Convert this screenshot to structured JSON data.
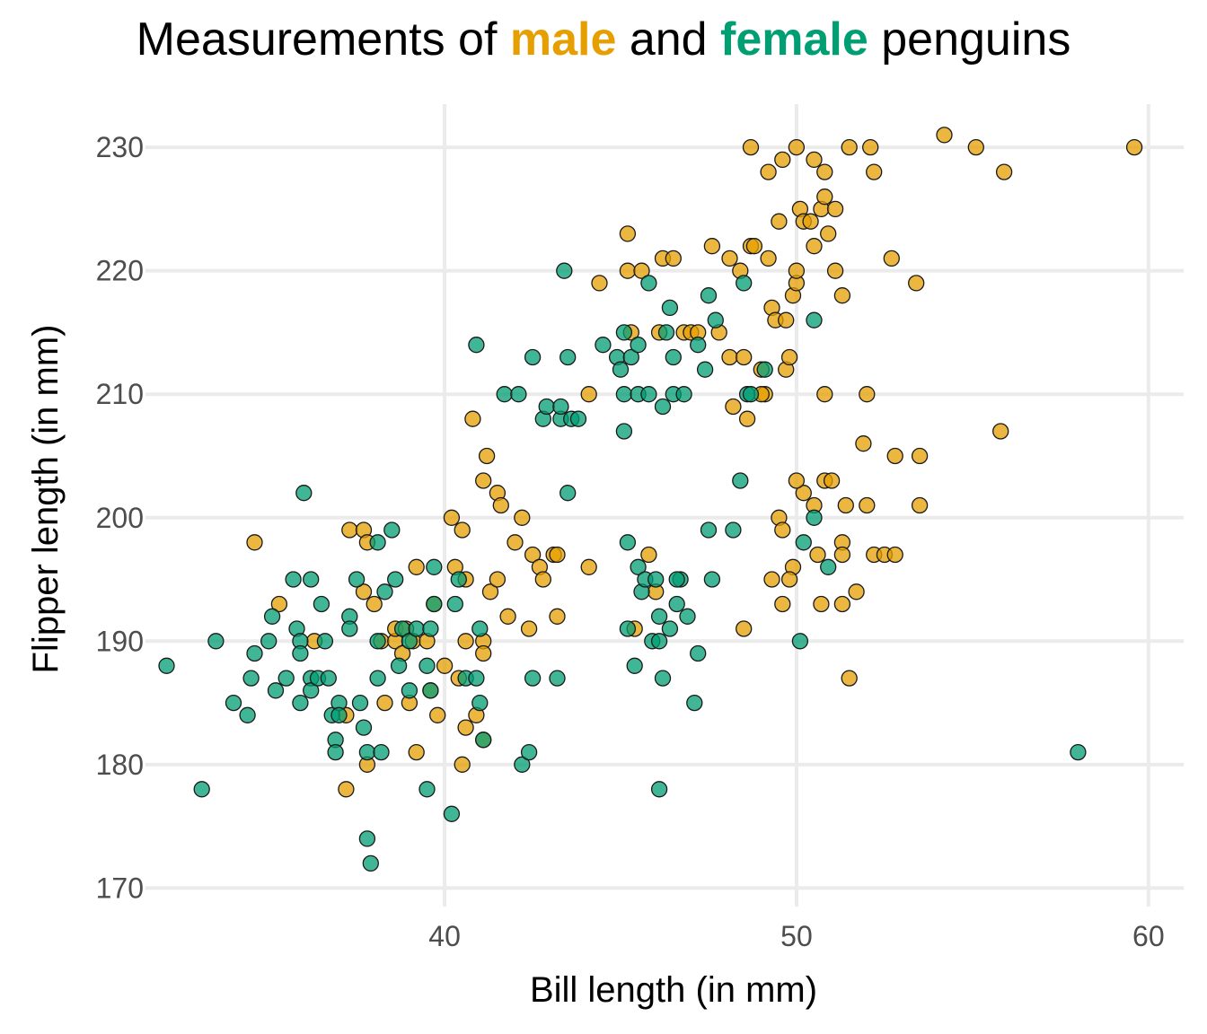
{
  "title": {
    "prefix": "Measurements of ",
    "male_word": "male",
    "middle": " and ",
    "female_word": "female",
    "suffix": " penguins"
  },
  "colors": {
    "male": "#E69F00",
    "female": "#009E73",
    "grid": "#ebebeb",
    "stroke": "#1a1a1a"
  },
  "chart_data": {
    "type": "scatter",
    "xlabel": "Bill length (in mm)",
    "ylabel": "Flipper length (in mm)",
    "xlim": [
      31.5,
      61
    ],
    "ylim": [
      168.5,
      233.5
    ],
    "xticks": [
      40,
      50,
      60
    ],
    "yticks": [
      170,
      180,
      190,
      200,
      210,
      220,
      230
    ],
    "grid": true,
    "legend": "none",
    "series": [
      {
        "name": "male",
        "points": [
          [
            34.6,
            198
          ],
          [
            35.3,
            193
          ],
          [
            37.3,
            199
          ],
          [
            37.7,
            199
          ],
          [
            37.8,
            198
          ],
          [
            37.2,
            184
          ],
          [
            37.2,
            178
          ],
          [
            37.7,
            194
          ],
          [
            37.8,
            180
          ],
          [
            38.0,
            193
          ],
          [
            38.2,
            190
          ],
          [
            38.3,
            185
          ],
          [
            38.6,
            190
          ],
          [
            38.6,
            191
          ],
          [
            38.8,
            189
          ],
          [
            38.9,
            191
          ],
          [
            39.1,
            190
          ],
          [
            39.2,
            196
          ],
          [
            39.2,
            181
          ],
          [
            39.0,
            185
          ],
          [
            39.5,
            190
          ],
          [
            39.6,
            186
          ],
          [
            39.7,
            193
          ],
          [
            39.8,
            184
          ],
          [
            40.2,
            200
          ],
          [
            40.3,
            196
          ],
          [
            40.5,
            199
          ],
          [
            40.6,
            195
          ],
          [
            40.6,
            183
          ],
          [
            40.8,
            208
          ],
          [
            40.9,
            184
          ],
          [
            41.1,
            203
          ],
          [
            41.1,
            182
          ],
          [
            41.1,
            190
          ],
          [
            41.2,
            205
          ],
          [
            41.3,
            194
          ],
          [
            41.5,
            202
          ],
          [
            41.5,
            195
          ],
          [
            41.6,
            201
          ],
          [
            41.8,
            192
          ],
          [
            41.1,
            189
          ],
          [
            40.4,
            187
          ],
          [
            40.6,
            190
          ],
          [
            36.3,
            190
          ],
          [
            40.0,
            188
          ],
          [
            40.5,
            180
          ],
          [
            42.0,
            198
          ],
          [
            42.2,
            200
          ],
          [
            42.5,
            197
          ],
          [
            42.4,
            191
          ],
          [
            42.7,
            196
          ],
          [
            42.8,
            195
          ],
          [
            43.1,
            197
          ],
          [
            43.2,
            197
          ],
          [
            43.2,
            192
          ],
          [
            44.1,
            196
          ],
          [
            44.1,
            210
          ],
          [
            44.4,
            219
          ],
          [
            45.2,
            220
          ],
          [
            45.2,
            223
          ],
          [
            45.3,
            215
          ],
          [
            45.4,
            191
          ],
          [
            45.6,
            220
          ],
          [
            45.8,
            197
          ],
          [
            46.0,
            194
          ],
          [
            46.1,
            215
          ],
          [
            46.2,
            221
          ],
          [
            46.5,
            221
          ],
          [
            46.8,
            215
          ],
          [
            47.0,
            215
          ],
          [
            47.2,
            215
          ],
          [
            47.6,
            222
          ],
          [
            47.8,
            215
          ],
          [
            48.1,
            213
          ],
          [
            48.1,
            221
          ],
          [
            48.2,
            209
          ],
          [
            48.4,
            220
          ],
          [
            48.5,
            213
          ],
          [
            48.7,
            222
          ],
          [
            48.5,
            191
          ],
          [
            48.6,
            208
          ],
          [
            48.7,
            230
          ],
          [
            48.8,
            222
          ],
          [
            49.1,
            210
          ],
          [
            49.2,
            221
          ],
          [
            49.2,
            228
          ],
          [
            49.3,
            217
          ],
          [
            49.4,
            216
          ],
          [
            49.5,
            224
          ],
          [
            49.6,
            229
          ],
          [
            49.7,
            216
          ],
          [
            49.7,
            212
          ],
          [
            49.8,
            213
          ],
          [
            49.9,
            218
          ],
          [
            49.9,
            196
          ],
          [
            50.0,
            219
          ],
          [
            50.0,
            220
          ],
          [
            50.1,
            225
          ],
          [
            50.2,
            224
          ],
          [
            50.2,
            202
          ],
          [
            50.4,
            224
          ],
          [
            50.5,
            222
          ],
          [
            50.5,
            229
          ],
          [
            50.6,
            197
          ],
          [
            50.7,
            225
          ],
          [
            50.8,
            226
          ],
          [
            50.8,
            228
          ],
          [
            50.8,
            210
          ],
          [
            50.8,
            203
          ],
          [
            50.9,
            223
          ],
          [
            51.0,
            203
          ],
          [
            51.1,
            220
          ],
          [
            51.1,
            225
          ],
          [
            51.3,
            218
          ],
          [
            51.3,
            198
          ],
          [
            51.3,
            197
          ],
          [
            51.3,
            193
          ],
          [
            51.4,
            201
          ],
          [
            51.5,
            230
          ],
          [
            51.5,
            187
          ],
          [
            51.7,
            194
          ],
          [
            52.0,
            210
          ],
          [
            52.0,
            201
          ],
          [
            52.1,
            230
          ],
          [
            52.2,
            197
          ],
          [
            52.2,
            228
          ],
          [
            52.5,
            197
          ],
          [
            52.7,
            221
          ],
          [
            52.8,
            197
          ],
          [
            52.8,
            205
          ],
          [
            49.0,
            212
          ],
          [
            49.0,
            210
          ],
          [
            49.5,
            200
          ],
          [
            49.6,
            193
          ],
          [
            49.8,
            195
          ],
          [
            49.3,
            195
          ],
          [
            50.5,
            201
          ],
          [
            50.7,
            193
          ],
          [
            50.0,
            230
          ],
          [
            51.9,
            206
          ],
          [
            53.4,
            219
          ],
          [
            53.5,
            205
          ],
          [
            54.2,
            231
          ],
          [
            55.1,
            230
          ],
          [
            55.8,
            207
          ],
          [
            55.9,
            228
          ],
          [
            59.6,
            230
          ],
          [
            53.5,
            201
          ],
          [
            49.6,
            199
          ],
          [
            50.0,
            203
          ]
        ]
      },
      {
        "name": "female",
        "points": [
          [
            32.1,
            188
          ],
          [
            33.1,
            178
          ],
          [
            33.5,
            190
          ],
          [
            34.0,
            185
          ],
          [
            34.4,
            184
          ],
          [
            34.5,
            187
          ],
          [
            34.6,
            189
          ],
          [
            35.0,
            190
          ],
          [
            35.1,
            192
          ],
          [
            35.2,
            186
          ],
          [
            35.5,
            187
          ],
          [
            35.7,
            195
          ],
          [
            35.8,
            191
          ],
          [
            35.9,
            190
          ],
          [
            35.9,
            189
          ],
          [
            35.9,
            185
          ],
          [
            36.0,
            202
          ],
          [
            36.2,
            187
          ],
          [
            36.2,
            186
          ],
          [
            36.2,
            195
          ],
          [
            36.4,
            187
          ],
          [
            36.5,
            193
          ],
          [
            36.6,
            190
          ],
          [
            36.7,
            187
          ],
          [
            36.8,
            184
          ],
          [
            36.9,
            182
          ],
          [
            36.9,
            181
          ],
          [
            37.0,
            185
          ],
          [
            37.0,
            184
          ],
          [
            37.3,
            192
          ],
          [
            37.3,
            191
          ],
          [
            37.5,
            195
          ],
          [
            37.6,
            185
          ],
          [
            37.7,
            183
          ],
          [
            37.8,
            174
          ],
          [
            37.8,
            181
          ],
          [
            37.9,
            172
          ],
          [
            38.1,
            190
          ],
          [
            38.1,
            198
          ],
          [
            38.1,
            187
          ],
          [
            38.2,
            181
          ],
          [
            38.5,
            199
          ],
          [
            38.6,
            195
          ],
          [
            38.7,
            188
          ],
          [
            38.8,
            191
          ],
          [
            39.0,
            190
          ],
          [
            39.0,
            186
          ],
          [
            39.2,
            191
          ],
          [
            39.5,
            178
          ],
          [
            39.5,
            188
          ],
          [
            39.6,
            186
          ],
          [
            39.6,
            191
          ],
          [
            39.7,
            193
          ],
          [
            39.7,
            196
          ],
          [
            40.2,
            176
          ],
          [
            40.3,
            193
          ],
          [
            40.4,
            195
          ],
          [
            40.6,
            187
          ],
          [
            40.9,
            214
          ],
          [
            40.9,
            187
          ],
          [
            41.0,
            191
          ],
          [
            41.0,
            185
          ],
          [
            41.1,
            182
          ],
          [
            41.7,
            210
          ],
          [
            42.1,
            210
          ],
          [
            42.2,
            180
          ],
          [
            42.4,
            181
          ],
          [
            42.5,
            187
          ],
          [
            42.5,
            213
          ],
          [
            42.8,
            208
          ],
          [
            42.9,
            209
          ],
          [
            43.2,
            187
          ],
          [
            43.3,
            208
          ],
          [
            43.3,
            209
          ],
          [
            43.4,
            220
          ],
          [
            43.5,
            213
          ],
          [
            43.5,
            202
          ],
          [
            43.6,
            208
          ],
          [
            43.8,
            208
          ],
          [
            44.5,
            214
          ],
          [
            44.9,
            213
          ],
          [
            45.0,
            212
          ],
          [
            45.1,
            207
          ],
          [
            45.1,
            210
          ],
          [
            45.1,
            215
          ],
          [
            45.2,
            191
          ],
          [
            45.2,
            198
          ],
          [
            45.3,
            213
          ],
          [
            45.4,
            188
          ],
          [
            45.5,
            210
          ],
          [
            45.5,
            214
          ],
          [
            45.5,
            196
          ],
          [
            45.6,
            194
          ],
          [
            45.7,
            195
          ],
          [
            45.8,
            219
          ],
          [
            45.8,
            210
          ],
          [
            45.9,
            190
          ],
          [
            46.1,
            178
          ],
          [
            46.2,
            187
          ],
          [
            46.2,
            209
          ],
          [
            46.3,
            215
          ],
          [
            46.4,
            217
          ],
          [
            46.4,
            191
          ],
          [
            46.5,
            210
          ],
          [
            46.5,
            213
          ],
          [
            46.6,
            193
          ],
          [
            46.7,
            195
          ],
          [
            46.8,
            210
          ],
          [
            46.9,
            192
          ],
          [
            47.2,
            214
          ],
          [
            47.4,
            212
          ],
          [
            47.5,
            218
          ],
          [
            47.6,
            195
          ],
          [
            47.7,
            216
          ],
          [
            47.5,
            199
          ],
          [
            48.2,
            199
          ],
          [
            48.4,
            203
          ],
          [
            48.5,
            219
          ],
          [
            48.6,
            210
          ],
          [
            49.1,
            212
          ],
          [
            50.1,
            190
          ],
          [
            50.2,
            198
          ],
          [
            50.5,
            216
          ],
          [
            50.5,
            200
          ],
          [
            50.9,
            196
          ],
          [
            58.0,
            181
          ],
          [
            46.0,
            195
          ],
          [
            46.1,
            192
          ],
          [
            46.1,
            190
          ],
          [
            46.6,
            195
          ],
          [
            47.1,
            185
          ],
          [
            47.2,
            189
          ],
          [
            48.7,
            210
          ],
          [
            38.3,
            194
          ]
        ]
      }
    ]
  }
}
